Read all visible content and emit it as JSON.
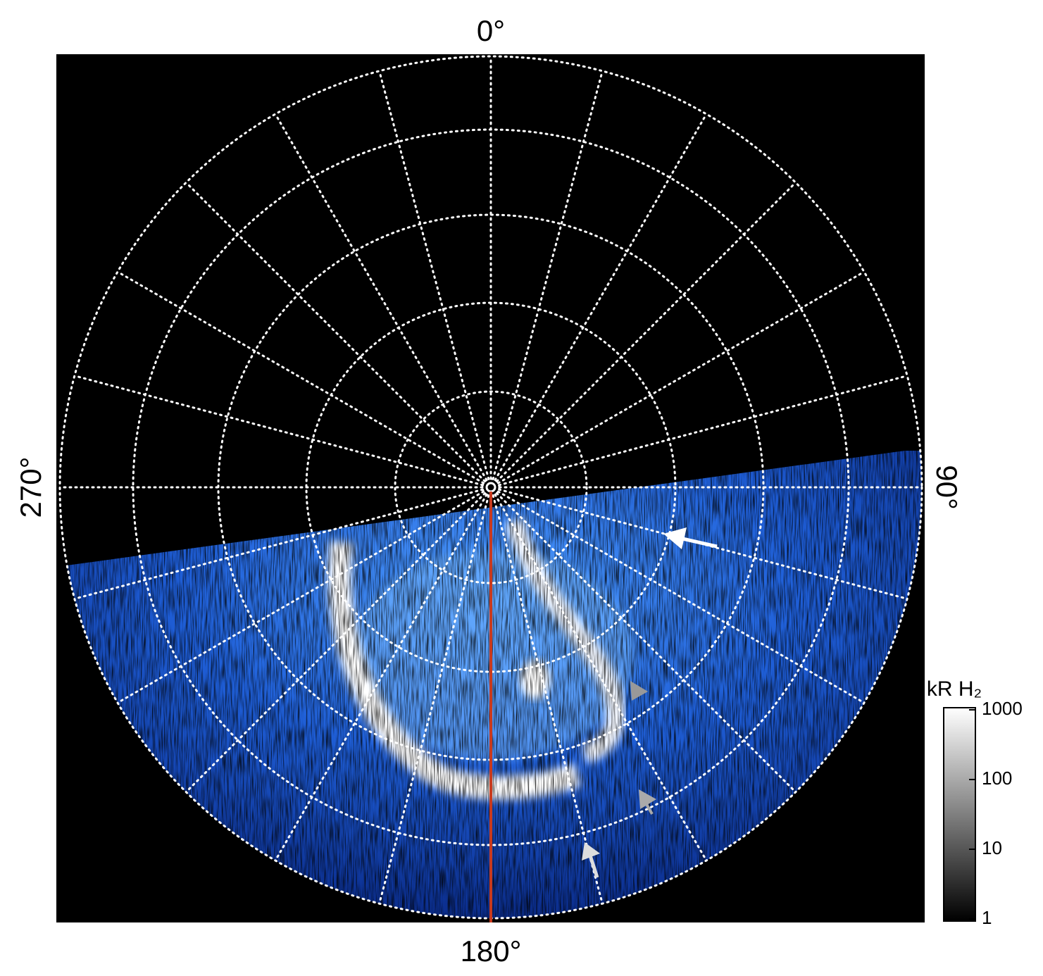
{
  "labels": {
    "top": "0°",
    "right": "90°",
    "bottom": "180°",
    "left": "270°"
  },
  "colorbar": {
    "label": "kR H₂",
    "scale": "log",
    "lim": [
      1,
      1000
    ],
    "ticks": [
      1,
      10,
      100,
      1000
    ]
  }
}
